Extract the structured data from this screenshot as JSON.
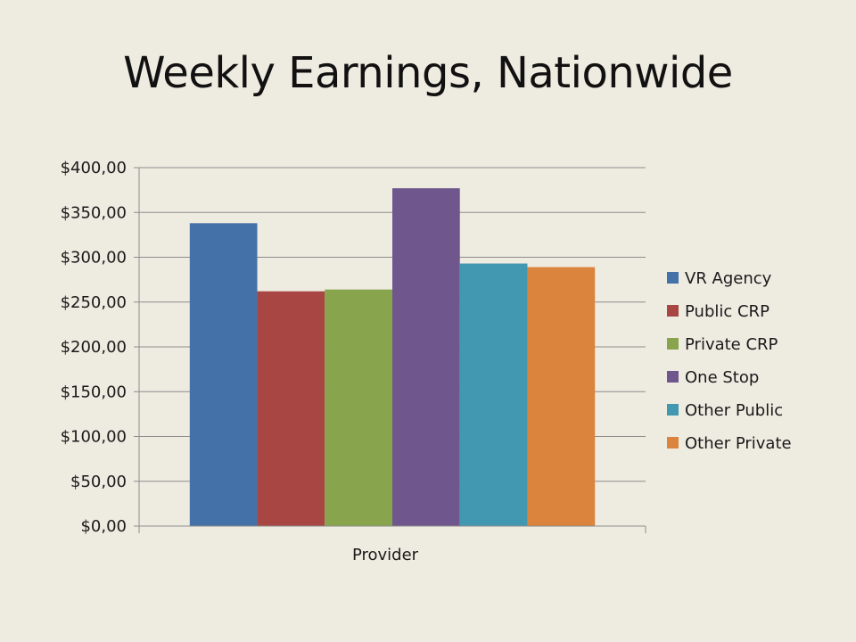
{
  "slide": {
    "title": "Weekly Earnings, Nationwide"
  },
  "chart_data": {
    "type": "bar",
    "title": "",
    "xlabel": "",
    "ylabel": "",
    "categories": [
      "Provider"
    ],
    "ylim": [
      0,
      400
    ],
    "ytick_values": [
      0,
      50,
      100,
      150,
      200,
      250,
      300,
      350,
      400
    ],
    "ytick_labels": [
      "$0,00",
      "$50,00",
      "$100,00",
      "$150,00",
      "$200,00",
      "$250,00",
      "$300,00",
      "$350,00",
      "$400,00"
    ],
    "grid": true,
    "legend_position": "right",
    "series": [
      {
        "name": "VR Agency",
        "values": [
          338
        ],
        "color": "#4472a8"
      },
      {
        "name": "Public CRP",
        "values": [
          262
        ],
        "color": "#a84644"
      },
      {
        "name": "Private CRP",
        "values": [
          264
        ],
        "color": "#88a54d"
      },
      {
        "name": "One Stop",
        "values": [
          377
        ],
        "color": "#6f578d"
      },
      {
        "name": "Other Public",
        "values": [
          293
        ],
        "color": "#4298b0"
      },
      {
        "name": "Other Private",
        "values": [
          289
        ],
        "color": "#da843d"
      }
    ]
  }
}
